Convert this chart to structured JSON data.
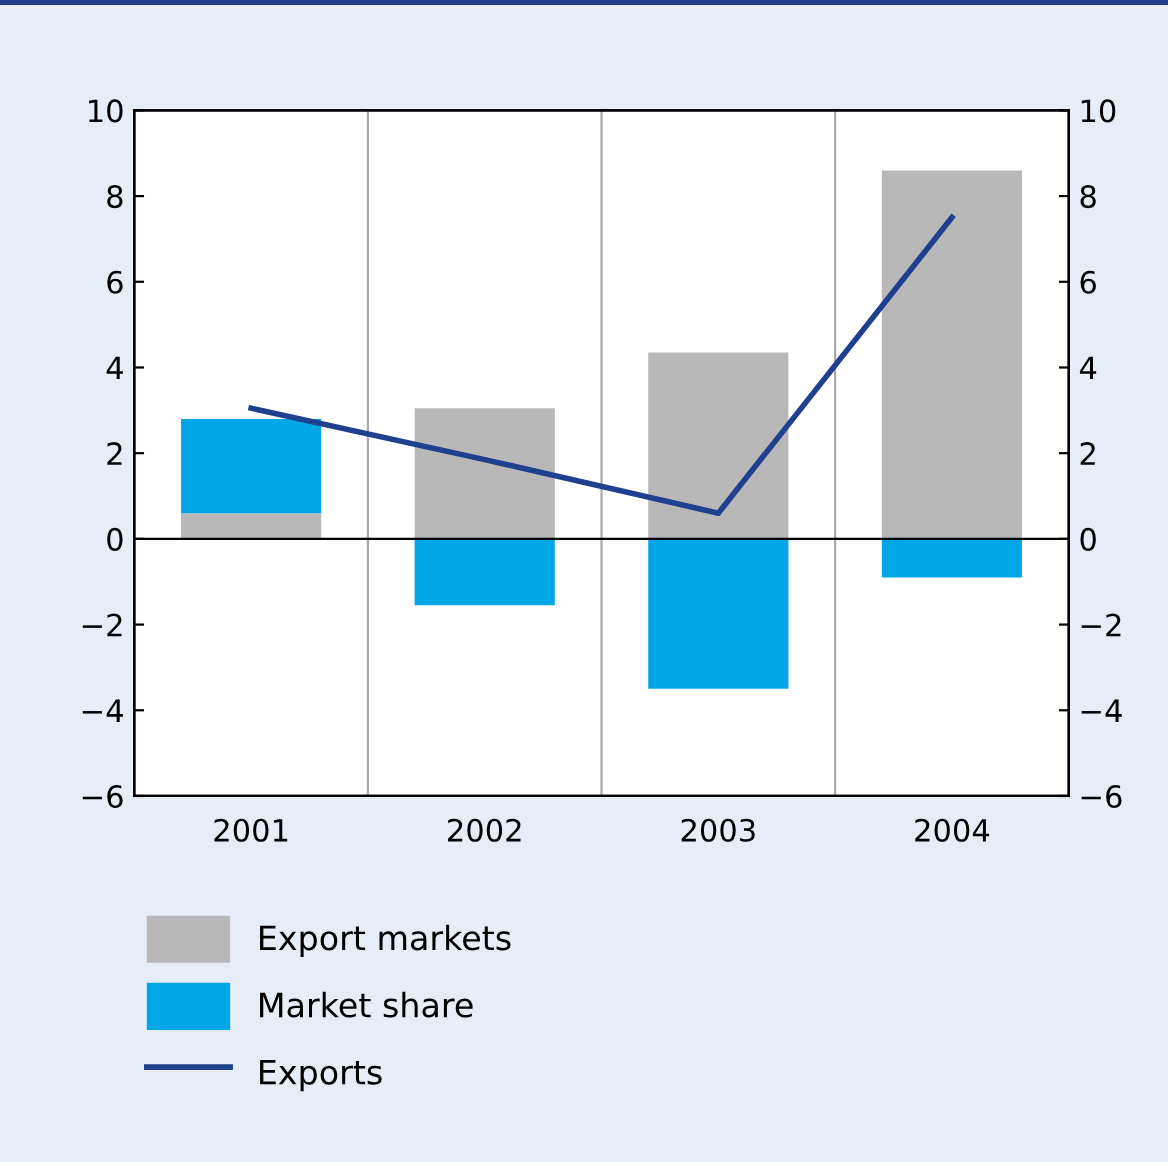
{
  "chart_data": {
    "type": "bar",
    "stacked": true,
    "categories": [
      "2001",
      "2002",
      "2003",
      "2004"
    ],
    "series": [
      {
        "name": "Export markets",
        "color": "#b8b8b8",
        "values": [
          0.6,
          3.05,
          4.35,
          8.6
        ]
      },
      {
        "name": "Market share",
        "color": "#00a6e6",
        "values": [
          2.2,
          -1.55,
          -3.5,
          -0.9
        ]
      },
      {
        "name": "Exports",
        "type": "line",
        "color": "#1f3f8f",
        "values": [
          3.05,
          1.85,
          0.6,
          7.5
        ]
      }
    ],
    "ylim": [
      -6,
      10
    ],
    "yticks": [
      {
        "value": -6,
        "label": "−6"
      },
      {
        "value": -4,
        "label": "−4"
      },
      {
        "value": -2,
        "label": "−2"
      },
      0,
      2,
      4,
      6,
      8,
      10
    ],
    "y2lim": [
      -6,
      10
    ],
    "y2ticks": [
      {
        "value": -6,
        "label": "−6"
      },
      {
        "value": -4,
        "label": "−4"
      },
      {
        "value": -2,
        "label": "−2"
      },
      0,
      2,
      4,
      6,
      8,
      10
    ],
    "legend": "bottom",
    "grid": "x"
  }
}
